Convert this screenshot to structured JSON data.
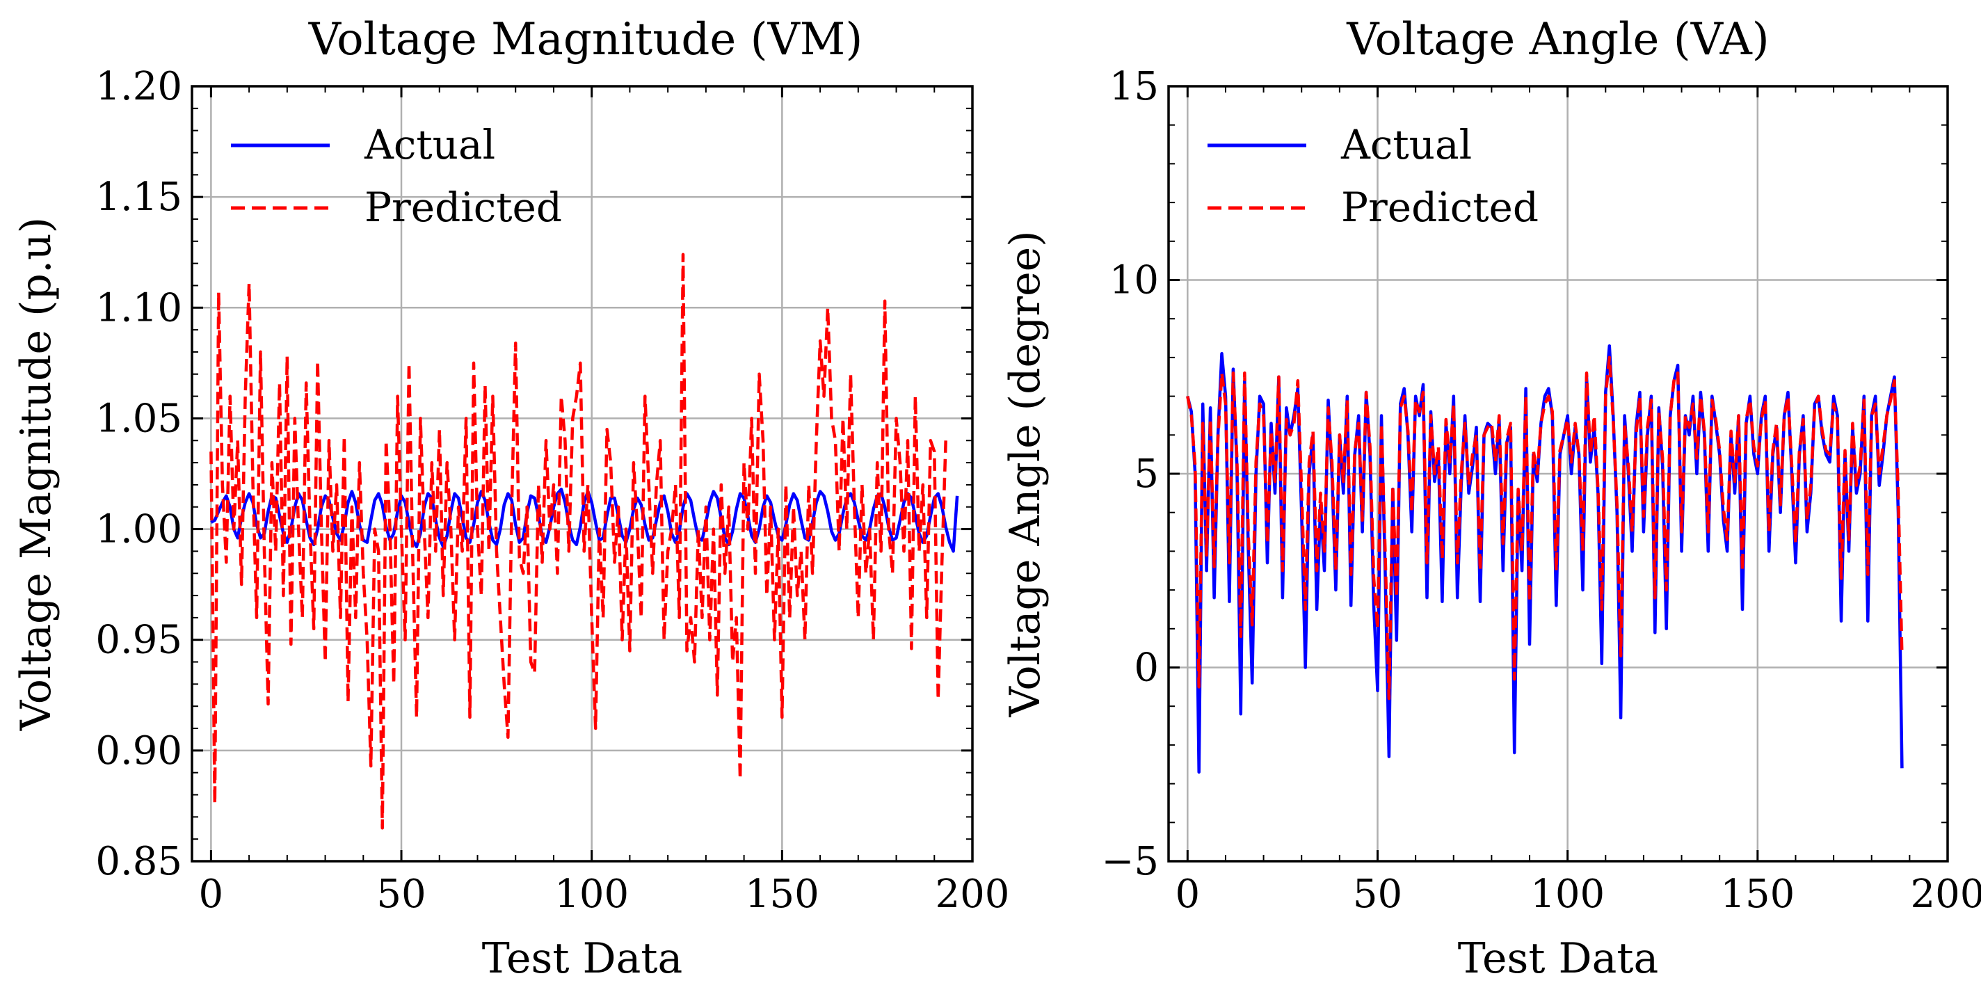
{
  "chart_data": [
    {
      "type": "line",
      "title": "Voltage Magnitude (VM)",
      "xlabel": "Test Data",
      "ylabel": "Voltage Magnitude (p.u)",
      "xlim": [
        -5,
        200
      ],
      "ylim": [
        0.85,
        1.2
      ],
      "xticks": [
        0,
        50,
        100,
        150,
        200
      ],
      "xtick_labels": [
        "0",
        "50",
        "100",
        "150",
        "200"
      ],
      "yticks": [
        0.85,
        0.9,
        0.95,
        1.0,
        1.05,
        1.1,
        1.15,
        1.2
      ],
      "ytick_labels": [
        "0.85",
        "0.90",
        "0.95",
        "1.00",
        "1.05",
        "1.10",
        "1.15",
        "1.20"
      ],
      "grid": true,
      "legend_position": "top-left",
      "series": [
        {
          "name": "Actual",
          "color": "#0000ff",
          "dash": "solid",
          "values": [
            1.003,
            1.004,
            1.008,
            1.012,
            1.015,
            1.01,
            1.0,
            0.996,
            1.005,
            1.012,
            1.016,
            1.012,
            1.002,
            0.996,
            0.998,
            1.008,
            1.015,
            1.014,
            1.006,
            0.998,
            0.994,
            1.0,
            1.01,
            1.016,
            1.013,
            1.004,
            0.996,
            0.993,
            1.0,
            1.01,
            1.015,
            1.013,
            1.005,
            0.998,
            0.995,
            1.002,
            1.012,
            1.017,
            1.012,
            1.002,
            0.995,
            0.994,
            1.004,
            1.013,
            1.016,
            1.011,
            1.001,
            0.995,
            0.998,
            1.008,
            1.015,
            1.012,
            1.003,
            0.995,
            0.992,
            0.998,
            1.01,
            1.016,
            1.014,
            1.004,
            0.996,
            0.992,
            0.997,
            1.008,
            1.016,
            1.014,
            1.005,
            0.996,
            0.994,
            1.002,
            1.012,
            1.017,
            1.013,
            1.003,
            0.995,
            0.993,
            1.0,
            1.011,
            1.016,
            1.013,
            1.002,
            0.994,
            0.996,
            1.007,
            1.015,
            1.014,
            1.006,
            0.997,
            0.994,
            1.001,
            1.01,
            1.016,
            1.018,
            1.012,
            1.002,
            0.995,
            0.993,
            1.001,
            1.012,
            1.017,
            1.012,
            1.003,
            0.995,
            0.996,
            1.006,
            1.014,
            1.014,
            1.006,
            0.997,
            0.994,
            1.0,
            1.009,
            1.014,
            1.011,
            1.002,
            0.995,
            0.996,
            1.004,
            1.012,
            1.015,
            1.008,
            0.998,
            0.994,
            0.999,
            1.01,
            1.016,
            1.013,
            1.004,
            0.996,
            0.995,
            1.003,
            1.012,
            1.017,
            1.014,
            1.005,
            0.996,
            0.993,
            0.999,
            1.009,
            1.016,
            1.014,
            1.006,
            0.997,
            0.994,
            1.0,
            1.01,
            1.015,
            1.012,
            1.004,
            0.997,
            0.995,
            1.002,
            1.011,
            1.016,
            1.013,
            1.004,
            0.996,
            0.995,
            1.003,
            1.012,
            1.017,
            1.015,
            1.008,
            0.999,
            0.995,
            0.998,
            1.007,
            1.014,
            1.016,
            1.012,
            1.004,
            0.997,
            0.995,
            1.0,
            1.009,
            1.015,
            1.016,
            1.01,
            1.001,
            0.995,
            0.996,
            1.004,
            1.012,
            1.016,
            1.014,
            1.006,
            0.998,
            0.994,
            0.997,
            1.006,
            1.014,
            1.016,
            1.01,
            1.001,
            0.994,
            0.99,
            1.015
          ]
        },
        {
          "name": "Predicted",
          "color": "#ff0000",
          "dash": "dashed",
          "values": [
            1.035,
            0.876,
            1.107,
            1.02,
            0.985,
            1.06,
            1.0,
            1.04,
            0.975,
            1.06,
            1.111,
            1.02,
            0.96,
            1.08,
            0.99,
            0.921,
            1.03,
            0.99,
            1.066,
            0.97,
            1.078,
            0.948,
            1.05,
            1.0,
            0.96,
            1.066,
            1.0,
            0.955,
            1.076,
            1.0,
            0.94,
            1.04,
            0.99,
            1.02,
            0.96,
            1.042,
            0.922,
            1.01,
            0.96,
            1.03,
            0.98,
            0.95,
            0.893,
            1.0,
            0.99,
            0.865,
            1.04,
            1.0,
            0.93,
            1.06,
            1.0,
            0.95,
            1.075,
            0.987,
            0.915,
            1.05,
            1.0,
            0.96,
            1.03,
            0.99,
            1.045,
            0.97,
            1.03,
            1.0,
            0.95,
            1.01,
            0.99,
            1.05,
            0.915,
            1.075,
            1.0,
            0.97,
            1.065,
            0.99,
            1.06,
            0.99,
            0.96,
            0.93,
            0.906,
            1.01,
            1.084,
            0.987,
            0.98,
            1.01,
            0.94,
            0.935,
            1.02,
            0.985,
            1.04,
            1.0,
            1.02,
            0.98,
            1.06,
            1.04,
            0.99,
            1.05,
            1.06,
            1.075,
            0.99,
            1.02,
            0.96,
            0.91,
            1.0,
            0.96,
            1.045,
            1.03,
            0.985,
            1.01,
            0.95,
            1.0,
            0.945,
            1.03,
            1.0,
            0.96,
            1.06,
            1.02,
            0.98,
            1.02,
            1.04,
            0.95,
            0.99,
            1.0,
            1.02,
            0.96,
            1.124,
            0.945,
            0.96,
            0.94,
            1.0,
            0.96,
            1.01,
            0.95,
            1.0,
            0.925,
            1.02,
            0.98,
            1.01,
            0.94,
            0.96,
            0.887,
            1.03,
            1.0,
            1.05,
            0.98,
            1.07,
            1.04,
            0.97,
            1.01,
            0.95,
            1.0,
            0.915,
            1.02,
            0.96,
            1.01,
            0.97,
            0.99,
            0.95,
            1.02,
            0.98,
            1.04,
            1.085,
            1.06,
            1.1,
            1.05,
            1.04,
            0.99,
            1.05,
            1.0,
            1.07,
            1.01,
            0.96,
            1.02,
            0.98,
            1.0,
            0.95,
            1.03,
            0.99,
            1.103,
            1.0,
            0.98,
            1.05,
            1.03,
            0.99,
            1.04,
            0.946,
            1.06,
            0.99,
            1.02,
            0.96,
            1.04,
            1.035,
            0.923,
            0.985,
            1.04
          ]
        }
      ]
    },
    {
      "type": "line",
      "title": "Voltage Angle (VA)",
      "xlabel": "Test Data",
      "ylabel": "Voltage Angle (degree)",
      "xlim": [
        -5,
        200
      ],
      "ylim": [
        -5,
        15
      ],
      "xticks": [
        0,
        50,
        100,
        150,
        200
      ],
      "xtick_labels": [
        "0",
        "50",
        "100",
        "150",
        "200"
      ],
      "yticks": [
        -5,
        0,
        5,
        10,
        15
      ],
      "ytick_labels": [
        "−5",
        "0",
        "5",
        "10",
        "15"
      ],
      "grid": true,
      "legend_position": "top-left",
      "series": [
        {
          "name": "Actual",
          "color": "#0000ff",
          "dash": "solid",
          "values": [
            7.0,
            6.6,
            5.0,
            -2.7,
            6.8,
            2.5,
            6.7,
            1.8,
            6.0,
            8.1,
            7.0,
            1.7,
            7.7,
            5.2,
            -1.2,
            7.4,
            3.0,
            -0.4,
            5.0,
            7.0,
            6.8,
            2.7,
            6.3,
            4.5,
            7.5,
            1.8,
            6.7,
            6.0,
            6.5,
            7.2,
            4.0,
            0.0,
            5.0,
            6.0,
            1.5,
            4.2,
            2.5,
            6.9,
            5.0,
            2.0,
            6.0,
            4.5,
            7.0,
            1.6,
            5.5,
            6.5,
            3.5,
            7.1,
            5.5,
            1.6,
            -0.6,
            6.5,
            2.5,
            -2.3,
            4.6,
            0.7,
            6.8,
            7.2,
            6.0,
            3.5,
            7.0,
            6.5,
            7.3,
            1.8,
            6.6,
            4.8,
            5.5,
            1.7,
            6.3,
            5.0,
            7.0,
            1.8,
            4.7,
            6.5,
            4.5,
            5.2,
            6.2,
            1.7,
            6.0,
            6.3,
            6.2,
            5.0,
            6.4,
            2.5,
            5.8,
            6.2,
            -2.2,
            4.5,
            2.5,
            7.2,
            0.6,
            5.5,
            4.8,
            6.3,
            7.0,
            7.2,
            6.5,
            1.6,
            5.5,
            6.0,
            6.5,
            5.0,
            6.2,
            5.5,
            2.0,
            7.5,
            5.3,
            6.2,
            4.5,
            0.1,
            7.1,
            8.3,
            6.5,
            4.0,
            -1.3,
            6.5,
            5.0,
            3.0,
            6.2,
            7.1,
            3.5,
            6.0,
            7.0,
            0.9,
            6.7,
            5.2,
            1.0,
            6.5,
            7.4,
            7.8,
            3.0,
            6.5,
            6.0,
            7.0,
            5.0,
            7.1,
            6.0,
            3.0,
            7.0,
            6.3,
            5.5,
            3.8,
            3.0,
            6.0,
            4.5,
            6.5,
            1.5,
            6.3,
            7.0,
            5.5,
            5.0,
            6.5,
            7.0,
            3.0,
            5.5,
            6.2,
            4.0,
            6.5,
            7.1,
            5.0,
            2.7,
            5.5,
            6.5,
            3.5,
            4.5,
            6.8,
            7.0,
            6.0,
            5.5,
            5.3,
            7.0,
            6.5,
            1.2,
            5.5,
            3.0,
            6.2,
            4.5,
            5.0,
            7.0,
            1.2,
            6.5,
            7.0,
            4.7,
            5.5,
            6.5,
            7.0,
            7.5,
            4.0,
            -2.6
          ]
        },
        {
          "name": "Predicted",
          "color": "#ff0000",
          "dash": "dashed",
          "values": [
            7.0,
            6.5,
            5.2,
            -0.5,
            6.3,
            2.9,
            6.4,
            2.6,
            5.9,
            7.6,
            6.8,
            2.7,
            7.6,
            5.4,
            0.8,
            7.6,
            3.4,
            1.1,
            5.3,
            6.8,
            6.5,
            3.2,
            6.1,
            4.8,
            7.5,
            2.5,
            6.4,
            6.0,
            6.3,
            7.4,
            4.6,
            1.5,
            5.3,
            6.1,
            2.5,
            4.5,
            3.0,
            6.7,
            5.3,
            2.5,
            6.0,
            4.8,
            6.9,
            2.4,
            5.6,
            6.3,
            3.8,
            7.1,
            5.7,
            2.3,
            1.0,
            6.3,
            3.0,
            -0.8,
            4.7,
            1.8,
            6.7,
            7.0,
            6.1,
            4.0,
            6.9,
            6.6,
            7.1,
            2.7,
            6.5,
            5.0,
            5.7,
            2.8,
            6.4,
            5.3,
            6.8,
            2.7,
            5.0,
            6.3,
            4.7,
            5.5,
            6.0,
            2.5,
            6.0,
            6.2,
            6.3,
            5.3,
            6.5,
            3.2,
            5.9,
            6.3,
            -0.3,
            4.6,
            3.0,
            7.0,
            1.7,
            5.6,
            5.0,
            6.3,
            6.8,
            7.0,
            6.6,
            2.5,
            5.6,
            6.0,
            6.4,
            5.3,
            6.3,
            5.5,
            3.0,
            7.6,
            5.5,
            6.5,
            4.6,
            1.5,
            7.0,
            8.0,
            6.4,
            4.2,
            0.3,
            6.3,
            5.2,
            3.5,
            6.0,
            7.0,
            3.9,
            6.2,
            6.9,
            1.8,
            6.6,
            5.4,
            2.0,
            6.5,
            7.4,
            7.6,
            3.5,
            6.5,
            6.2,
            6.8,
            5.4,
            7.0,
            6.1,
            3.5,
            6.9,
            6.4,
            5.6,
            4.1,
            3.3,
            6.1,
            4.8,
            6.5,
            2.5,
            6.4,
            6.9,
            5.7,
            5.2,
            6.4,
            6.9,
            3.5,
            5.6,
            6.3,
            4.2,
            6.5,
            7.0,
            5.2,
            3.2,
            5.6,
            6.4,
            3.8,
            4.7,
            6.7,
            7.0,
            6.1,
            5.6,
            5.5,
            6.8,
            6.4,
            2.3,
            5.6,
            3.3,
            6.3,
            4.7,
            5.2,
            6.9,
            2.4,
            6.5,
            6.8,
            5.0,
            5.7,
            6.5,
            6.9,
            7.4,
            4.5,
            0.3
          ]
        }
      ]
    }
  ]
}
